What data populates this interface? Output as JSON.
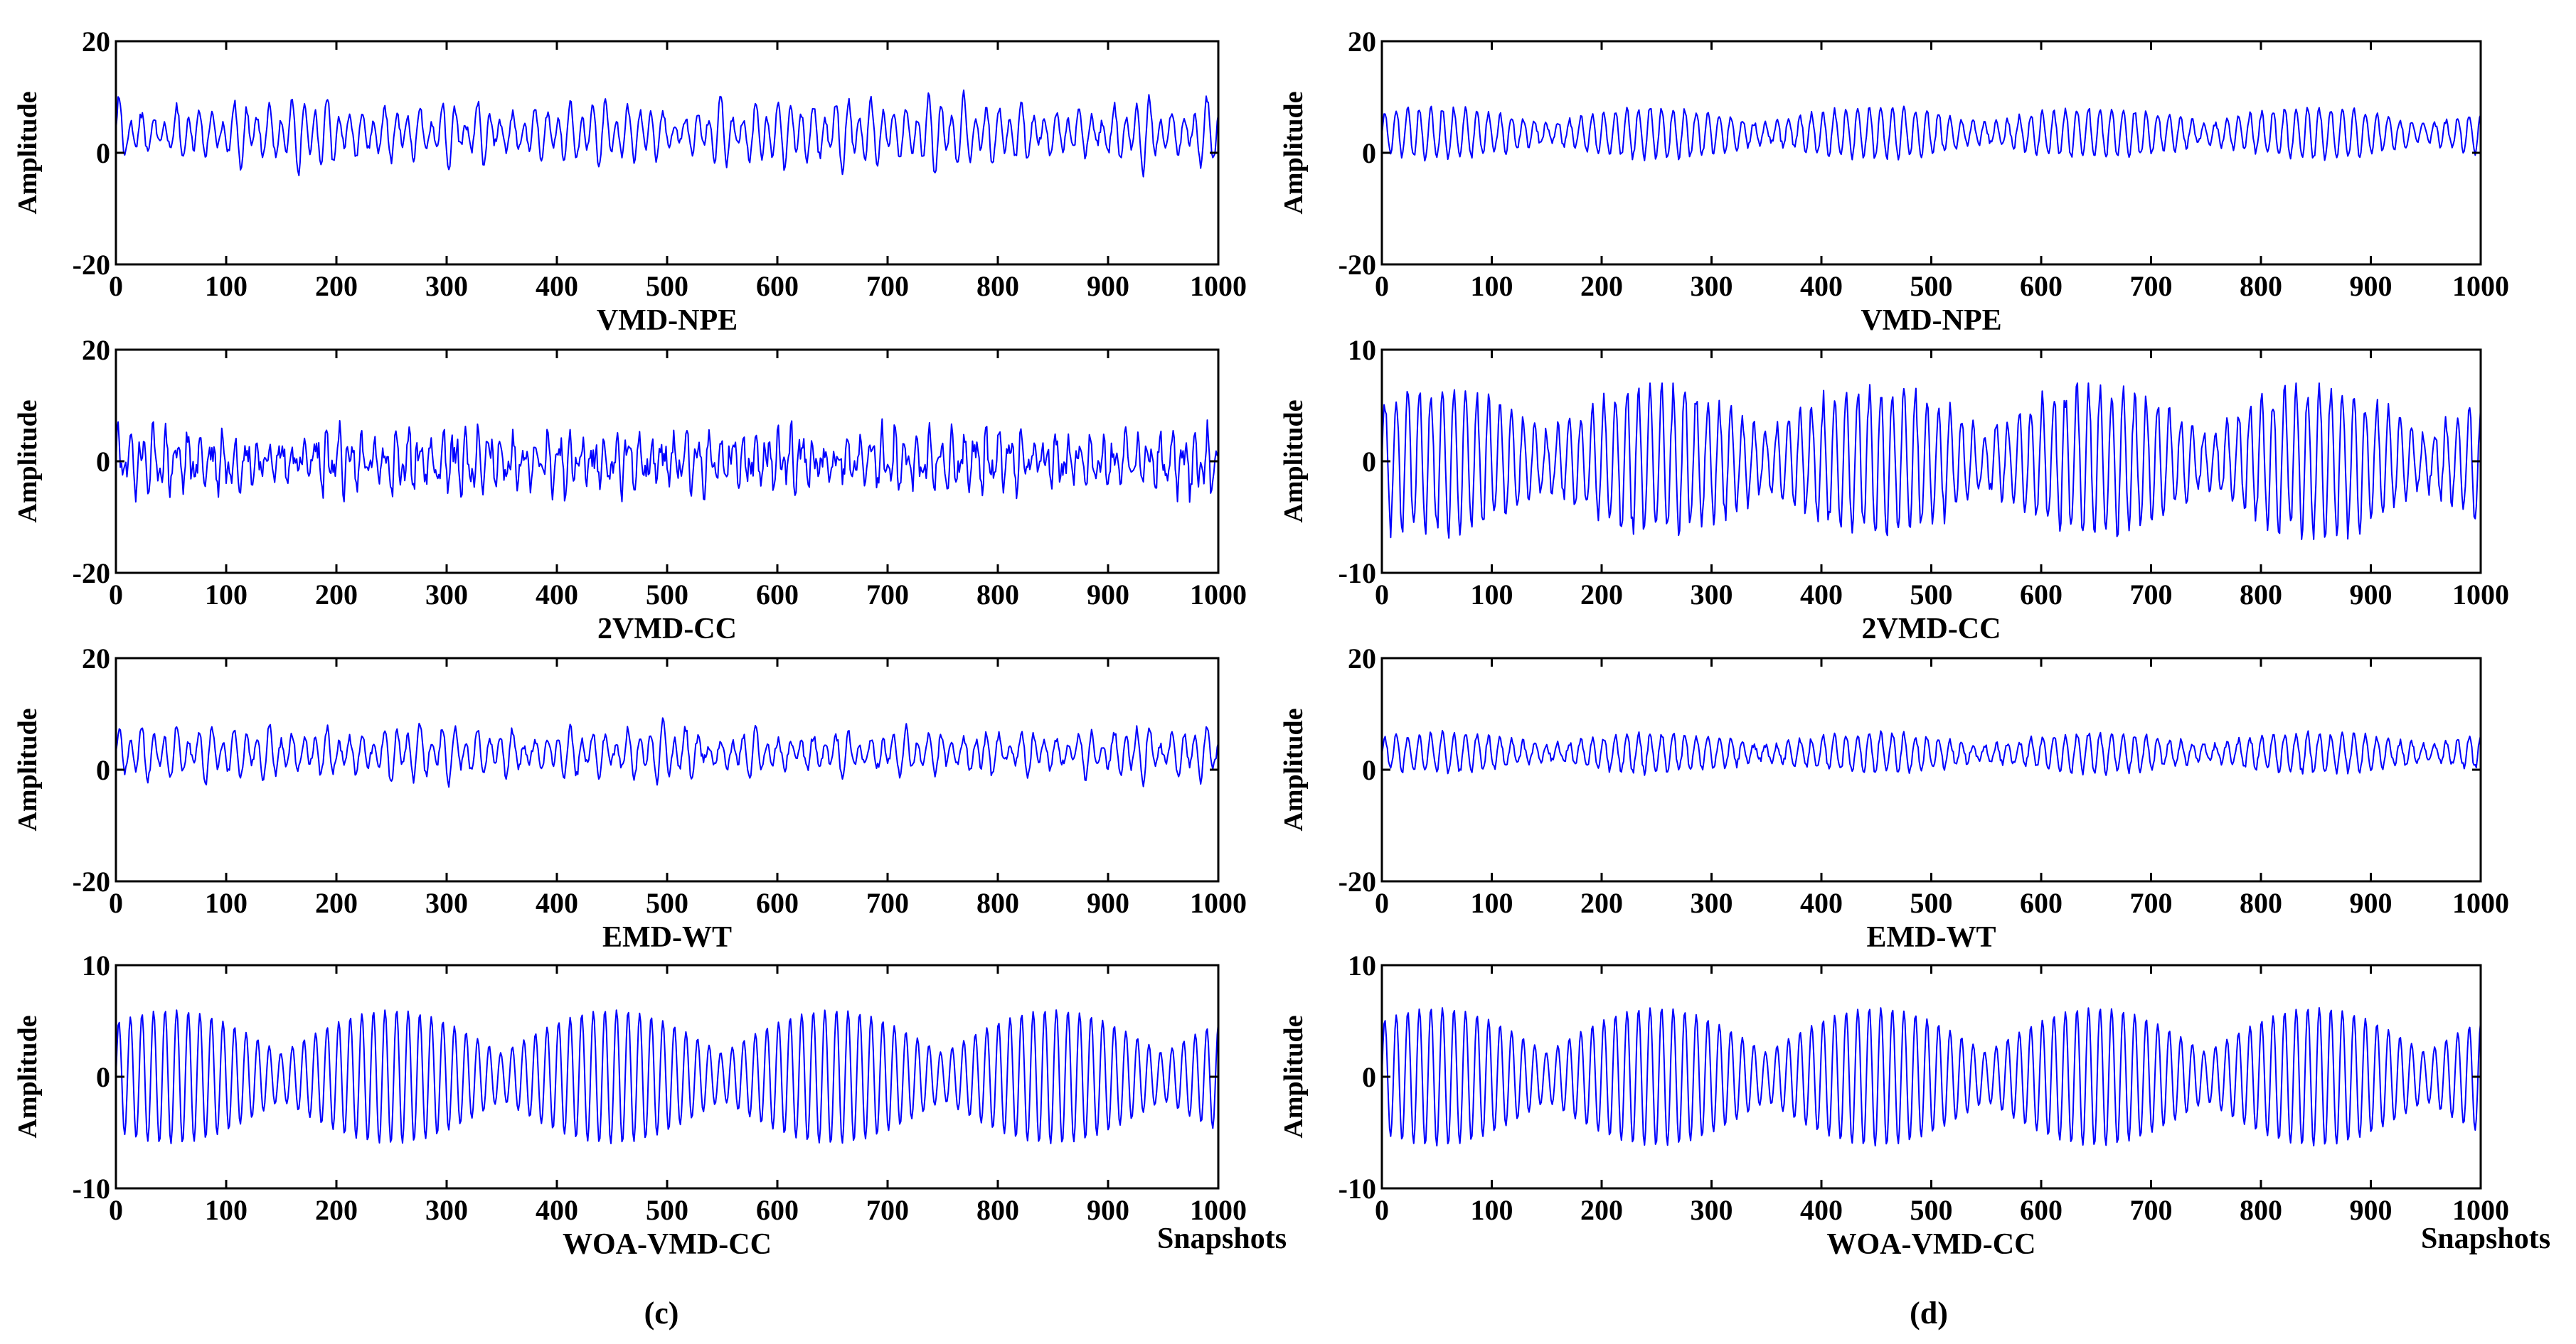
{
  "figure": {
    "subfigure_labels": [
      "(c)",
      "(d)"
    ],
    "snapshots_label": "Snapshots",
    "colors": {
      "signal": "#0000ff",
      "axes": "#000000"
    }
  },
  "chart_data": [
    {
      "type": "line",
      "panel": "c",
      "title": "VMD-NPE",
      "ylabel": "Amplitude",
      "xlabel": "",
      "xlim": [
        0,
        1000
      ],
      "ylim": [
        -20,
        20
      ],
      "xticks": [
        0,
        100,
        200,
        300,
        400,
        500,
        600,
        700,
        800,
        900,
        1000
      ],
      "yticks": [
        -20,
        0,
        20
      ],
      "series": [
        {
          "name": "VMD-NPE",
          "shape": "noisy-positive",
          "seed": 11,
          "baseline": 3.5,
          "amplitude": 5.5,
          "range": [
            -5,
            13
          ]
        }
      ]
    },
    {
      "type": "line",
      "panel": "c",
      "title": "2VMD-CC",
      "ylabel": "Amplitude",
      "xlabel": "",
      "xlim": [
        0,
        1000
      ],
      "ylim": [
        -20,
        20
      ],
      "xticks": [
        0,
        100,
        200,
        300,
        400,
        500,
        600,
        700,
        800,
        900,
        1000
      ],
      "yticks": [
        -20,
        0,
        20
      ],
      "series": [
        {
          "name": "2VMD-CC",
          "shape": "noisy-symmetric",
          "seed": 23,
          "baseline": 0,
          "amplitude": 5,
          "range": [
            -10,
            10
          ]
        }
      ]
    },
    {
      "type": "line",
      "panel": "c",
      "title": "EMD-WT",
      "ylabel": "Amplitude",
      "xlabel": "",
      "xlim": [
        0,
        1000
      ],
      "ylim": [
        -20,
        20
      ],
      "xticks": [
        0,
        100,
        200,
        300,
        400,
        500,
        600,
        700,
        800,
        900,
        1000
      ],
      "yticks": [
        -20,
        0,
        20
      ],
      "series": [
        {
          "name": "EMD-WT",
          "shape": "noisy-positive",
          "seed": 37,
          "baseline": 3,
          "amplitude": 4,
          "range": [
            -7,
            12
          ]
        }
      ]
    },
    {
      "type": "line",
      "panel": "c",
      "title": "WOA-VMD-CC",
      "ylabel": "Amplitude",
      "xlabel": "",
      "xlim": [
        0,
        1000
      ],
      "ylim": [
        -10,
        10
      ],
      "xticks": [
        0,
        100,
        200,
        300,
        400,
        500,
        600,
        700,
        800,
        900,
        1000
      ],
      "yticks": [
        -10,
        0,
        10
      ],
      "series": [
        {
          "name": "WOA-VMD-CC",
          "shape": "beat",
          "seed": 0,
          "baseline": 0,
          "amplitude": 6,
          "envelope_period": 200,
          "carrier_period": 10.5,
          "range": [
            -6.5,
            6.5
          ]
        }
      ]
    },
    {
      "type": "line",
      "panel": "d",
      "title": "VMD-NPE",
      "ylabel": "Amplitude",
      "xlabel": "",
      "xlim": [
        0,
        1000
      ],
      "ylim": [
        -20,
        20
      ],
      "xticks": [
        0,
        100,
        200,
        300,
        400,
        500,
        600,
        700,
        800,
        900,
        1000
      ],
      "yticks": [
        -20,
        0,
        20
      ],
      "series": [
        {
          "name": "VMD-NPE",
          "shape": "beat-positive",
          "seed": 0,
          "baseline": 3.5,
          "amplitude": 4.5,
          "envelope_period": 200,
          "carrier_period": 10.5,
          "range": [
            -4,
            11
          ]
        }
      ]
    },
    {
      "type": "line",
      "panel": "d",
      "title": "2VMD-CC",
      "ylabel": "Amplitude",
      "xlabel": "",
      "xlim": [
        0,
        1000
      ],
      "ylim": [
        -10,
        10
      ],
      "xticks": [
        0,
        100,
        200,
        300,
        400,
        500,
        600,
        700,
        800,
        900,
        1000
      ],
      "yticks": [
        -10,
        0,
        10
      ],
      "series": [
        {
          "name": "2VMD-CC",
          "shape": "beat-noisy",
          "seed": 51,
          "baseline": 0,
          "amplitude": 6.5,
          "envelope_period": 200,
          "carrier_period": 10.5,
          "range": [
            -7,
            7
          ]
        }
      ]
    },
    {
      "type": "line",
      "panel": "d",
      "title": "EMD-WT",
      "ylabel": "Amplitude",
      "xlabel": "",
      "xlim": [
        0,
        1000
      ],
      "ylim": [
        -20,
        20
      ],
      "xticks": [
        0,
        100,
        200,
        300,
        400,
        500,
        600,
        700,
        800,
        900,
        1000
      ],
      "yticks": [
        -20,
        0,
        20
      ],
      "series": [
        {
          "name": "EMD-WT",
          "shape": "beat-positive",
          "seed": 63,
          "baseline": 3,
          "amplitude": 3.5,
          "envelope_period": 200,
          "carrier_period": 10.5,
          "range": [
            -3,
            11
          ]
        }
      ]
    },
    {
      "type": "line",
      "panel": "d",
      "title": "WOA-VMD-CC",
      "ylabel": "Amplitude",
      "xlabel": "",
      "xlim": [
        0,
        1000
      ],
      "ylim": [
        -10,
        10
      ],
      "xticks": [
        0,
        100,
        200,
        300,
        400,
        500,
        600,
        700,
        800,
        900,
        1000
      ],
      "yticks": [
        -10,
        0,
        10
      ],
      "series": [
        {
          "name": "WOA-VMD-CC",
          "shape": "beat",
          "seed": 0,
          "baseline": 0,
          "amplitude": 6.2,
          "envelope_period": 200,
          "carrier_period": 10.5,
          "range": [
            -6.5,
            7
          ]
        }
      ]
    }
  ]
}
